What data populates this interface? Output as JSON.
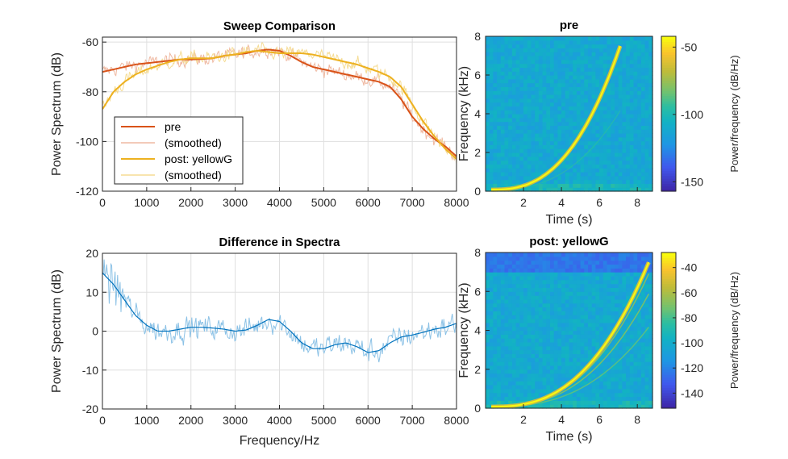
{
  "chart_data": [
    {
      "type": "line",
      "title": "Sweep Comparison",
      "xlabel": "",
      "ylabel": "Power Spectrum (dB)",
      "xlim": [
        0,
        8000
      ],
      "ylim": [
        -120,
        -58
      ],
      "xticks": [
        0,
        1000,
        2000,
        3000,
        4000,
        5000,
        6000,
        7000,
        8000
      ],
      "yticks": [
        -60,
        -80,
        -100,
        -120
      ],
      "grid": true,
      "legend_position": "bottom-left",
      "legend": [
        "pre",
        "(smoothed)",
        "post: yellowG",
        "(smoothed)"
      ],
      "series": [
        {
          "name": "pre",
          "color": "#d95319",
          "x": [
            0,
            250,
            500,
            750,
            1000,
            1250,
            1500,
            1750,
            2000,
            2250,
            2500,
            2750,
            3000,
            3250,
            3500,
            3750,
            4000,
            4250,
            4500,
            4750,
            5000,
            5250,
            5500,
            5750,
            6000,
            6250,
            6500,
            6750,
            7000,
            7250,
            7500,
            7750,
            8000
          ],
          "y": [
            -72,
            -71,
            -70,
            -69,
            -68.5,
            -68,
            -67.5,
            -67,
            -67,
            -66.8,
            -66.5,
            -65.5,
            -65,
            -64.5,
            -63.5,
            -63,
            -63.5,
            -65.5,
            -68,
            -70,
            -71,
            -72,
            -73,
            -74,
            -75,
            -76,
            -78,
            -83,
            -90,
            -95,
            -99,
            -102,
            -106
          ]
        },
        {
          "name": "(smoothed)",
          "color": "#efb9a2",
          "noisy": true,
          "base": 0
        },
        {
          "name": "post: yellowG",
          "color": "#edb120",
          "x": [
            0,
            250,
            500,
            750,
            1000,
            1250,
            1500,
            1750,
            2000,
            2250,
            2500,
            2750,
            3000,
            3250,
            3500,
            3750,
            4000,
            4250,
            4500,
            4750,
            5000,
            5250,
            5500,
            5750,
            6000,
            6250,
            6500,
            6750,
            7000,
            7250,
            7500,
            7750,
            8000
          ],
          "y": [
            -87,
            -80,
            -76,
            -73,
            -71,
            -69.5,
            -68,
            -67,
            -66.5,
            -66.5,
            -66.5,
            -65.5,
            -65,
            -64,
            -63.5,
            -64,
            -64.5,
            -64.5,
            -64.5,
            -65,
            -66,
            -67,
            -68,
            -69,
            -70.5,
            -72,
            -74,
            -78,
            -85,
            -92,
            -98,
            -103,
            -107
          ]
        },
        {
          "name": "(smoothed)",
          "color": "#f5dc94",
          "noisy": true,
          "base": 2
        }
      ]
    },
    {
      "type": "line",
      "title": "Difference in Spectra",
      "xlabel": "Frequency/Hz",
      "ylabel": "Power Spectrum (dB)",
      "xlim": [
        0,
        8000
      ],
      "ylim": [
        -20,
        20
      ],
      "xticks": [
        0,
        1000,
        2000,
        3000,
        4000,
        5000,
        6000,
        7000,
        8000
      ],
      "yticks": [
        20,
        10,
        0,
        -10,
        -20
      ],
      "grid": true,
      "series": [
        {
          "color": "#0072bd",
          "x": [
            0,
            250,
            500,
            750,
            1000,
            1250,
            1500,
            1750,
            2000,
            2250,
            2500,
            2750,
            3000,
            3250,
            3500,
            3750,
            4000,
            4250,
            4500,
            4750,
            5000,
            5250,
            5500,
            5750,
            6000,
            6250,
            6500,
            6750,
            7000,
            7250,
            7500,
            7750,
            8000
          ],
          "y": [
            15,
            12,
            8,
            4,
            1.5,
            0,
            0,
            0.5,
            1,
            1,
            0.8,
            0.5,
            0,
            0.3,
            1.5,
            3,
            2.5,
            0,
            -3,
            -4.5,
            -4.5,
            -3.5,
            -3,
            -4,
            -5.5,
            -5,
            -3,
            -1.5,
            -1,
            -0.3,
            0.5,
            1,
            2
          ]
        },
        {
          "color": "#8cc2e6",
          "noisy": true,
          "base": 0
        }
      ]
    },
    {
      "type": "heatmap",
      "title": "pre",
      "xlabel": "Time (s)",
      "ylabel": "Frequency (kHz)",
      "xlim": [
        0,
        8.8
      ],
      "ylim": [
        0,
        8
      ],
      "xticks": [
        2,
        4,
        6,
        8
      ],
      "yticks": [
        0,
        2,
        4,
        6,
        8
      ],
      "colorbar_label": "Power/frequency (dB/Hz)",
      "colorbar_ticks": [
        -50,
        -100,
        -150
      ],
      "clim": [
        -157,
        -42
      ],
      "sweep_end_time": 7.1,
      "sweep_end_freq": 7.5
    },
    {
      "type": "heatmap",
      "title": "post: yellowG",
      "xlabel": "Time (s)",
      "ylabel": "Frequency (kHz)",
      "xlim": [
        0,
        8.8
      ],
      "ylim": [
        0,
        8
      ],
      "xticks": [
        2,
        4,
        6,
        8
      ],
      "yticks": [
        0,
        2,
        4,
        6,
        8
      ],
      "colorbar_label": "Power/frequency (dB/Hz)",
      "colorbar_ticks": [
        -40,
        -60,
        -80,
        -100,
        -120,
        -140
      ],
      "clim": [
        -152,
        -28
      ],
      "sweep_end_time": 8.6,
      "sweep_end_freq": 7.5
    }
  ]
}
